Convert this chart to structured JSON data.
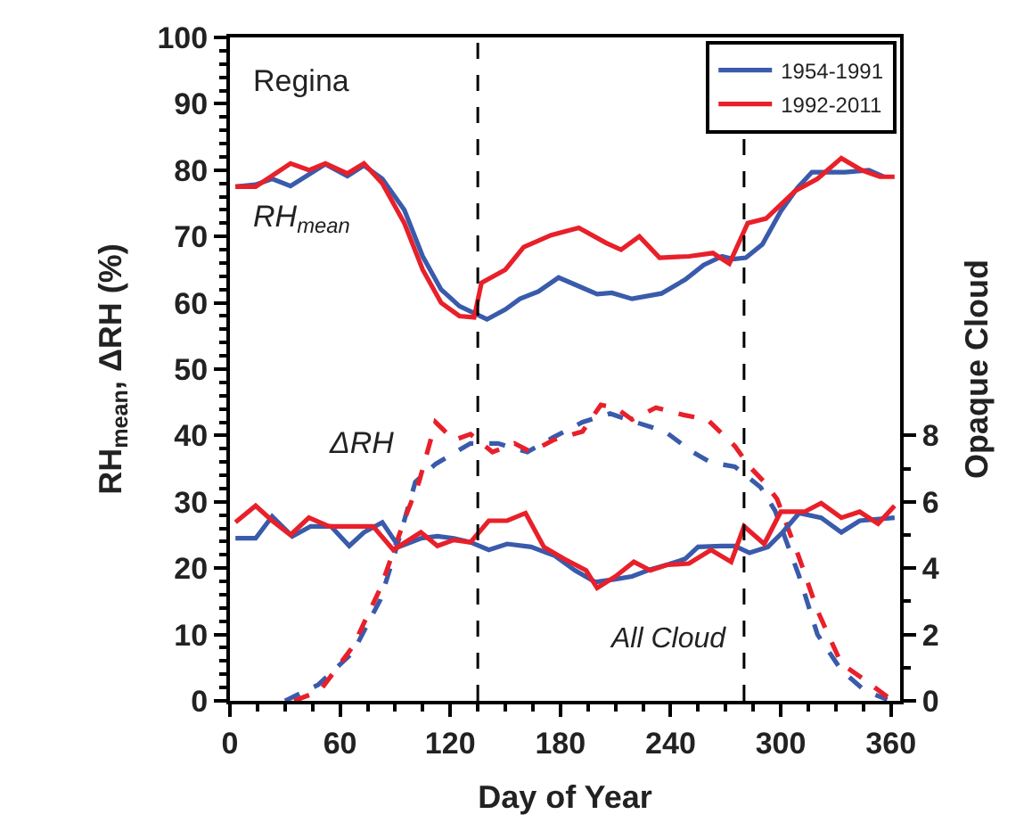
{
  "chart_data": {
    "type": "line",
    "xlabel": "Day of Year",
    "ylabel": "RH$_{mean}$, ΔRH (%)",
    "y2label": "Opaque Cloud",
    "xlim": [
      0,
      365
    ],
    "xticks": [
      0,
      60,
      120,
      180,
      240,
      300,
      360
    ],
    "ylim": [
      0,
      100
    ],
    "yticks": [
      0,
      10,
      20,
      30,
      40,
      50,
      60,
      70,
      80,
      90,
      100
    ],
    "y2lim": [
      0,
      20
    ],
    "y2ticks": [
      0,
      2,
      4,
      6,
      8
    ],
    "legend": "top right",
    "marker": "none",
    "annotations": [
      "Regina",
      "RH$_{mean}$",
      "ΔRH",
      "All Cloud"
    ],
    "ref_lines": [
      {
        "axis": "x",
        "value": 135,
        "color": "#000000",
        "line_style": "dashed"
      },
      {
        "axis": "x",
        "value": 280,
        "color": "#000000",
        "line_style": "dashed"
      }
    ],
    "series": [
      {
        "name": "1954-1991",
        "color": "#3a5bab",
        "line_style": "solid",
        "x": [
          3,
          14,
          23,
          33,
          52,
          64,
          73,
          83,
          95,
          105,
          115,
          125,
          140,
          150,
          158,
          168,
          179,
          190,
          200,
          208,
          219,
          235,
          248,
          258,
          268,
          274,
          281,
          290,
          300,
          309,
          317,
          335,
          348,
          356
        ],
        "values": [
          77.5,
          77.8,
          78.7,
          77.6,
          80.9,
          79.1,
          80.7,
          78.7,
          74,
          67,
          62,
          59.5,
          57.5,
          59,
          60.6,
          61.7,
          63.8,
          62.5,
          61.3,
          61.5,
          60.6,
          61.4,
          63.5,
          65.7,
          67,
          66.6,
          66.8,
          68.8,
          73.8,
          77.3,
          79.7,
          79.7,
          80,
          79
        ]
      },
      {
        "name": "1992-2011",
        "color": "#e8202a",
        "line_style": "solid",
        "x": [
          3,
          14,
          33,
          43,
          52,
          64,
          73,
          83,
          95,
          105,
          115,
          125,
          133,
          137,
          150,
          160,
          175,
          190,
          205,
          213,
          223,
          234,
          250,
          263,
          272,
          282,
          292,
          308,
          320,
          333,
          344,
          354,
          362
        ],
        "values": [
          77.5,
          77.5,
          81,
          80,
          81,
          79.5,
          81,
          78,
          72,
          65,
          60,
          58,
          57.8,
          63,
          65,
          68.4,
          70.2,
          71.3,
          69,
          68,
          70,
          66.8,
          67,
          67.5,
          65.9,
          72,
          72.7,
          76.9,
          78.7,
          81.8,
          80,
          79,
          79
        ]
      },
      {
        "color": "#3a5bab",
        "line_style": "dashed",
        "x": [
          30,
          48,
          67,
          82,
          90,
          101,
          112,
          131,
          146,
          162,
          176,
          192,
          207,
          221,
          237,
          252,
          262,
          275,
          289,
          297,
          310,
          320,
          333,
          346,
          358
        ],
        "values": [
          0,
          2.4,
          7.3,
          15.3,
          22.4,
          33,
          35.7,
          38.8,
          38.8,
          37.5,
          39.7,
          42,
          43.3,
          42,
          40.6,
          37.5,
          35.9,
          35.3,
          32.2,
          28.6,
          18.8,
          10,
          4.6,
          1.5,
          0.2
        ]
      },
      {
        "color": "#e8202a",
        "line_style": "dashed",
        "x": [
          35,
          49,
          67,
          82,
          96,
          103,
          112,
          122,
          131,
          143,
          155,
          164,
          176,
          192,
          202,
          210,
          219,
          232,
          247,
          260,
          275,
          283,
          291,
          298,
          310,
          320,
          333,
          346,
          360
        ],
        "values": [
          0,
          1.5,
          8.2,
          17,
          28,
          33,
          42,
          39.3,
          40.2,
          37.5,
          38.8,
          37.5,
          39.3,
          40.6,
          44.6,
          44.2,
          42.4,
          44.2,
          43.1,
          42.4,
          38.4,
          35.3,
          33,
          30.4,
          21.6,
          13.6,
          5.6,
          3.1,
          0.2
        ]
      },
      {
        "color": "#3a5bab",
        "line_style": "solid",
        "axis": "y2",
        "x": [
          3,
          14,
          23,
          34,
          44,
          55,
          65,
          73,
          83,
          92,
          104,
          113,
          122,
          131,
          141,
          151,
          164,
          177,
          188,
          199,
          209,
          219,
          229,
          238,
          248,
          255,
          268,
          275,
          283,
          293,
          301,
          310,
          322,
          333,
          343,
          362
        ],
        "values": [
          4.9,
          4.9,
          5.56,
          4.96,
          5.26,
          5.26,
          4.67,
          5.08,
          5.38,
          4.64,
          4.9,
          4.96,
          4.9,
          4.78,
          4.55,
          4.73,
          4.64,
          4.37,
          3.93,
          3.58,
          3.66,
          3.75,
          3.96,
          4.1,
          4.28,
          4.64,
          4.67,
          4.67,
          4.46,
          4.64,
          5.08,
          5.66,
          5.52,
          5.08,
          5.43,
          5.52
        ]
      },
      {
        "color": "#e8202a",
        "line_style": "solid",
        "axis": "y2",
        "x": [
          3,
          14,
          23,
          33,
          43,
          54,
          65,
          78,
          89,
          104,
          113,
          122,
          131,
          141,
          151,
          161,
          171,
          182,
          194,
          200,
          210,
          220,
          229,
          238,
          250,
          262,
          273,
          280,
          291,
          300,
          313,
          322,
          333,
          343,
          353,
          362
        ],
        "values": [
          5.38,
          5.88,
          5.43,
          5.0,
          5.52,
          5.26,
          5.26,
          5.26,
          4.55,
          5.08,
          4.67,
          4.85,
          4.78,
          5.43,
          5.43,
          5.66,
          4.64,
          4.28,
          3.93,
          3.4,
          3.75,
          4.19,
          3.93,
          4.1,
          4.14,
          4.55,
          4.19,
          5.26,
          4.73,
          5.7,
          5.7,
          5.96,
          5.52,
          5.7,
          5.34,
          5.88
        ]
      }
    ]
  }
}
